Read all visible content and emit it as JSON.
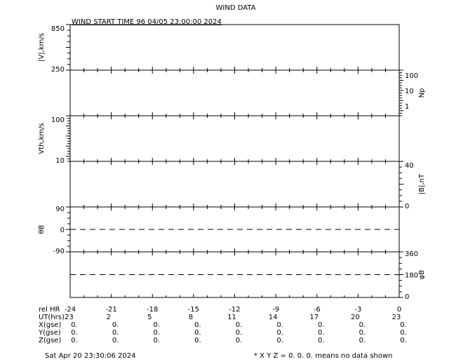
{
  "chart_data": {
    "type": "line",
    "title": "WIND DATA",
    "subtitle": "WIND START TIME  96 04/05 23:00:00 2024",
    "grid": false,
    "x": {
      "label": "rel HR",
      "range": [
        -24,
        0
      ],
      "ticks": [
        "-24",
        "-21",
        "-18",
        "-15",
        "-12",
        "-9",
        "-6",
        "-3",
        "0"
      ]
    },
    "panels": [
      {
        "label": "|V|,km/s",
        "side": "left",
        "ticks": [
          "850",
          "250"
        ],
        "range": [
          250,
          850
        ],
        "series": []
      },
      {
        "label": "Np",
        "side": "right",
        "scale": "log",
        "ticks": [
          "100",
          "10",
          "1"
        ],
        "series": []
      },
      {
        "label": "Vth,km/s",
        "side": "left",
        "scale": "log",
        "ticks": [
          "100",
          "10"
        ],
        "range": [
          10,
          100
        ],
        "series": []
      },
      {
        "label": "|B|,nT",
        "side": "right",
        "ticks": [
          "40",
          "0"
        ],
        "range": [
          0,
          40
        ],
        "series": []
      },
      {
        "label": "θB",
        "side": "left",
        "ticks": [
          "90",
          "0",
          "-90"
        ],
        "range": [
          -90,
          90
        ],
        "reference_line": 0,
        "series": []
      },
      {
        "label": "φB",
        "side": "right",
        "ticks": [
          "360",
          "180",
          "0"
        ],
        "range": [
          0,
          360
        ],
        "reference_line": 180,
        "series": []
      }
    ],
    "table": {
      "rows": [
        {
          "label": "rel HR",
          "values": [
            "-24",
            "-21",
            "-18",
            "-15",
            "-12",
            "-9",
            "-6",
            "-3",
            "0"
          ]
        },
        {
          "label": "UT(hrs)",
          "values": [
            "23",
            "2",
            "5",
            "8",
            "11",
            "14",
            "17",
            "20",
            "23"
          ]
        },
        {
          "label": "X(gse)",
          "values": [
            "0.",
            "0.",
            "0.",
            "0.",
            "0.",
            "0.",
            "0.",
            "0.",
            "0."
          ]
        },
        {
          "label": "Y(gse)",
          "values": [
            "0.",
            "0.",
            "0.",
            "0.",
            "0.",
            "0.",
            "0.",
            "0.",
            "0."
          ]
        },
        {
          "label": "Z(gse)",
          "values": [
            "0.",
            "0.",
            "0.",
            "0.",
            "0.",
            "0.",
            "0.",
            "0.",
            "0."
          ]
        }
      ]
    },
    "footer_date": "Sat Apr 20 23:30:06 2024",
    "footer_note": "* X Y Z = 0. 0. 0. means no data shown"
  }
}
